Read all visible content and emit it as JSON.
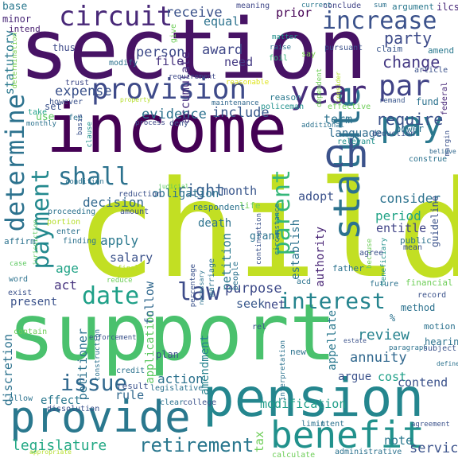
{
  "palette": {
    "deep_purple": "#440154",
    "purple": "#472d7b",
    "indigo": "#3b528b",
    "blue": "#2c728e",
    "teal": "#21918c",
    "green_teal": "#28ae80",
    "green": "#5ec962",
    "lime": "#addc30",
    "yellow": "#fde725"
  },
  "words": [
    {
      "id": "child",
      "text": "child",
      "color": "#c2df23"
    },
    {
      "id": "support",
      "text": "support",
      "color": "#4ac16d"
    },
    {
      "id": "section",
      "text": "section",
      "color": "#471365"
    },
    {
      "id": "income",
      "text": "income",
      "color": "#440154"
    },
    {
      "id": "pension",
      "text": "pension",
      "color": "#24868e"
    },
    {
      "id": "provide",
      "text": "provide",
      "color": "#2a788e"
    },
    {
      "id": "statute",
      "text": "statute",
      "color": "#2c728e"
    },
    {
      "id": "benefit",
      "text": "benefit",
      "color": "#21918c"
    },
    {
      "id": "pay",
      "text": "pay",
      "color": "#2a788e"
    },
    {
      "id": "year",
      "text": "year",
      "color": "#472d7b"
    },
    {
      "id": "par",
      "text": "par",
      "color": "#414487"
    },
    {
      "id": "ch",
      "text": "ch",
      "color": "#3b528b"
    },
    {
      "id": "provision",
      "text": "provision",
      "color": "#3e4a89"
    },
    {
      "id": "circuit",
      "text": "circuit",
      "color": "#482878"
    },
    {
      "id": "increase",
      "text": "increase",
      "color": "#3b528b"
    },
    {
      "id": "determine",
      "text": "determine",
      "color": "#2c728e"
    },
    {
      "id": "payment",
      "text": "payment",
      "color": "#23898e"
    },
    {
      "id": "shall",
      "text": "shall",
      "color": "#2c728e"
    },
    {
      "id": "parent",
      "text": "parent",
      "color": "#35b779"
    },
    {
      "id": "law",
      "text": "law",
      "color": "#3e4c8a"
    },
    {
      "id": "date",
      "text": "date",
      "color": "#1fa088"
    },
    {
      "id": "interest",
      "text": "interest",
      "color": "#25848e"
    },
    {
      "id": "issue",
      "text": "issue",
      "color": "#31688e"
    },
    {
      "id": "retirement",
      "text": "retirement",
      "color": "#2a778e"
    },
    {
      "id": "legislature",
      "text": "legislature",
      "color": "#22a884"
    },
    {
      "id": "right",
      "text": "right",
      "color": "#355f8d"
    },
    {
      "id": "require",
      "text": "require",
      "color": "#3b528b"
    },
    {
      "id": "party",
      "text": "party",
      "color": "#3e4c8a"
    },
    {
      "id": "change",
      "text": "change",
      "color": "#443983"
    },
    {
      "id": "evidence",
      "text": "evidence",
      "color": "#2c728e"
    },
    {
      "id": "include",
      "text": "include",
      "color": "#38588c"
    },
    {
      "id": "expense",
      "text": "expense",
      "color": "#3b528b"
    },
    {
      "id": "statutory",
      "text": "statutory",
      "color": "#2a788e"
    },
    {
      "id": "person",
      "text": "person",
      "color": "#3e4a89"
    },
    {
      "id": "award",
      "text": "award",
      "color": "#3f4788"
    },
    {
      "id": "need",
      "text": "need",
      "color": "#443a83"
    },
    {
      "id": "file",
      "text": "file",
      "color": "#46337e"
    },
    {
      "id": "receive",
      "text": "receive",
      "color": "#3b528b"
    },
    {
      "id": "equal",
      "text": "equal",
      "color": "#2c728e"
    },
    {
      "id": "prior",
      "text": "prior",
      "color": "#440154"
    },
    {
      "id": "accumulate",
      "text": "accumulate",
      "color": "#472f7d"
    },
    {
      "id": "term",
      "text": "term",
      "color": "#2c728e"
    },
    {
      "id": "language",
      "text": "language",
      "color": "#2f6c8e"
    },
    {
      "id": "consider",
      "text": "consider",
      "color": "#2c728e"
    },
    {
      "id": "adopt",
      "text": "adopt",
      "color": "#3b528b"
    },
    {
      "id": "month",
      "text": "month",
      "color": "#39568c"
    },
    {
      "id": "obligation",
      "text": "obligation",
      "color": "#2c728e"
    },
    {
      "id": "decision",
      "text": "decision",
      "color": "#31688e"
    },
    {
      "id": "period",
      "text": "period",
      "color": "#20a386"
    },
    {
      "id": "entitle",
      "text": "entitle",
      "color": "#414487"
    },
    {
      "id": "establish",
      "text": "establish",
      "color": "#2c728e"
    },
    {
      "id": "authority",
      "text": "authority",
      "color": "#482475"
    },
    {
      "id": "apply",
      "text": "apply",
      "color": "#2a788e"
    },
    {
      "id": "salary",
      "text": "salary",
      "color": "#3b528b"
    },
    {
      "id": "petition",
      "text": "petition",
      "color": "#2a788e"
    },
    {
      "id": "purpose",
      "text": "purpose",
      "color": "#3e4a89"
    },
    {
      "id": "seek",
      "text": "seek",
      "color": "#38588c"
    },
    {
      "id": "net",
      "text": "net",
      "color": "#3e4a89"
    },
    {
      "id": "review",
      "text": "review",
      "color": "#26828e"
    },
    {
      "id": "annuity",
      "text": "annuity",
      "color": "#31688e"
    },
    {
      "id": "appellate",
      "text": "appellate",
      "color": "#2a788e"
    },
    {
      "id": "argue",
      "text": "argue",
      "color": "#3b528b"
    },
    {
      "id": "cost",
      "text": "cost",
      "color": "#1fa088"
    },
    {
      "id": "contend",
      "text": "contend",
      "color": "#3b528b"
    },
    {
      "id": "modification",
      "text": "modification",
      "color": "#1f9e89"
    },
    {
      "id": "action",
      "text": "action",
      "color": "#2c728e"
    },
    {
      "id": "amendment",
      "text": "amendment",
      "color": "#26828e"
    },
    {
      "id": "application",
      "text": "application",
      "color": "#5ec962"
    },
    {
      "id": "follow",
      "text": "follow",
      "color": "#31688e"
    },
    {
      "id": "petitioner",
      "text": "petitioner",
      "color": "#2c728e"
    },
    {
      "id": "act",
      "text": "act",
      "color": "#46337e"
    },
    {
      "id": "age",
      "text": "age",
      "color": "#20a386"
    },
    {
      "id": "present",
      "text": "present",
      "color": "#3b528b"
    },
    {
      "id": "effect",
      "text": "effect",
      "color": "#2a788e"
    },
    {
      "id": "rule",
      "text": "rule",
      "color": "#31688e"
    },
    {
      "id": "tax",
      "text": "tax",
      "color": "#6ece58"
    },
    {
      "id": "note",
      "text": "note",
      "color": "#2a788e"
    },
    {
      "id": "service",
      "text": "service",
      "color": "#3b528b"
    },
    {
      "id": "discretion",
      "text": "discretion",
      "color": "#2c728e"
    },
    {
      "id": "base",
      "text": "base",
      "color": "#2a788e"
    },
    {
      "id": "minor",
      "text": "minor",
      "color": "#482677"
    },
    {
      "id": "intend",
      "text": "intend",
      "color": "#481f70"
    },
    {
      "id": "determination",
      "text": "determination",
      "color": "#7ad151"
    },
    {
      "id": "thus",
      "text": "thus",
      "color": "#3e4a89"
    },
    {
      "id": "give",
      "text": "give",
      "color": "#6ece58"
    },
    {
      "id": "meaning",
      "text": "meaning",
      "color": "#3f4788"
    },
    {
      "id": "current",
      "text": "current",
      "color": "#2a788e"
    },
    {
      "id": "conclude",
      "text": "conclude",
      "color": "#414487"
    },
    {
      "id": "sum",
      "text": "sum",
      "color": "#2c728e"
    },
    {
      "id": "argument",
      "text": "argument",
      "color": "#2a788e"
    },
    {
      "id": "ilcs",
      "text": "ilcs",
      "color": "#482878"
    },
    {
      "id": "matter",
      "text": "matter",
      "color": "#21918c"
    },
    {
      "id": "raise",
      "text": "raise",
      "color": "#2c728e"
    },
    {
      "id": "foil",
      "text": "foil",
      "color": "#35b779"
    },
    {
      "id": "say",
      "text": "say",
      "color": "#7ad151"
    },
    {
      "id": "pursuant",
      "text": "pursuant",
      "color": "#3b528b"
    },
    {
      "id": "claim",
      "text": "claim",
      "color": "#39568c"
    },
    {
      "id": "amend",
      "text": "amend",
      "color": "#2a788e"
    },
    {
      "id": "article",
      "text": "article",
      "color": "#3b528b"
    },
    {
      "id": "dependent",
      "text": "dependent",
      "color": "#6ece58"
    },
    {
      "id": "consider_small",
      "text": "consider",
      "color": "#b5de2b"
    },
    {
      "id": "federal",
      "text": "federal",
      "color": "#482878"
    },
    {
      "id": "modify",
      "text": "modify",
      "color": "#2c728e"
    },
    {
      "id": "requirement",
      "text": "requirement",
      "color": "#3e4a89"
    },
    {
      "id": "reasonable",
      "text": "reasonable",
      "color": "#dde318"
    },
    {
      "id": "trust",
      "text": "trust",
      "color": "#3e4a89"
    },
    {
      "id": "maintenance",
      "text": "maintenance",
      "color": "#31688e"
    },
    {
      "id": "reason",
      "text": "reason",
      "color": "#2a788e"
    },
    {
      "id": "policeman",
      "text": "policeman",
      "color": "#21918c"
    },
    {
      "id": "effective",
      "text": "effective",
      "color": "#6ece58"
    },
    {
      "id": "remand",
      "text": "remand",
      "color": "#39568c"
    },
    {
      "id": "fund",
      "text": "fund",
      "color": "#2c728e"
    },
    {
      "id": "however",
      "text": "however",
      "color": "#3b528b"
    },
    {
      "id": "property",
      "text": "property",
      "color": "#b5de2b"
    },
    {
      "id": "set",
      "text": "set",
      "color": "#3b528b"
    },
    {
      "id": "take",
      "text": "take",
      "color": "#1fa088"
    },
    {
      "id": "use",
      "text": "use",
      "color": "#5ec962"
    },
    {
      "id": "fee",
      "text": "fee",
      "color": "#2c728e"
    },
    {
      "id": "basis",
      "text": "basis",
      "color": "#3b528b"
    },
    {
      "id": "clause",
      "text": "clause",
      "color": "#21918c"
    },
    {
      "id": "monthly",
      "text": "monthly",
      "color": "#2c728e"
    },
    {
      "id": "deny",
      "text": "deny",
      "color": "#3b528b"
    },
    {
      "id": "process",
      "text": "process",
      "color": "#3e4a89"
    },
    {
      "id": "additional",
      "text": "additional",
      "color": "#2c728e"
    },
    {
      "id": "deduction",
      "text": "deduction",
      "color": "#3b528b"
    },
    {
      "id": "power",
      "text": "power",
      "color": "#2c728e"
    },
    {
      "id": "relevant",
      "text": "relevant",
      "color": "#21918c"
    },
    {
      "id": "margin",
      "text": "margin",
      "color": "#3b528b"
    },
    {
      "id": "believe",
      "text": "believe",
      "color": "#31688e"
    },
    {
      "id": "construe",
      "text": "construe",
      "color": "#2c728e"
    },
    {
      "id": "judicial",
      "text": "judicial",
      "color": "#5ec962"
    },
    {
      "id": "reduction",
      "text": "reduction",
      "color": "#3b528b"
    },
    {
      "id": "condition",
      "text": "condition",
      "color": "#2c728e"
    },
    {
      "id": "respondent",
      "text": "respondent",
      "color": "#2c728e"
    },
    {
      "id": "life",
      "text": "life",
      "color": "#6ece58"
    },
    {
      "id": "continuation",
      "text": "continuation",
      "color": "#3b528b"
    },
    {
      "id": "circumstance",
      "text": "circumstance",
      "color": "#2c728e"
    },
    {
      "id": "beneficiary",
      "text": "beneficiary",
      "color": "#21918c"
    },
    {
      "id": "because",
      "text": "because",
      "color": "#6ece58"
    },
    {
      "id": "proceeding",
      "text": "proceeding",
      "color": "#2c728e"
    },
    {
      "id": "amount",
      "text": "amount",
      "color": "#3b528b"
    },
    {
      "id": "death",
      "text": "death",
      "color": "#2c728e"
    },
    {
      "id": "portion",
      "text": "portion",
      "color": "#b5de2b"
    },
    {
      "id": "jurisdiction",
      "text": "jurisdiction",
      "color": "#5ec962"
    },
    {
      "id": "grant",
      "text": "grant",
      "color": "#2c728e"
    },
    {
      "id": "guideline",
      "text": "guideline",
      "color": "#3b528b"
    },
    {
      "id": "enter",
      "text": "enter",
      "color": "#2c728e"
    },
    {
      "id": "finding",
      "text": "finding",
      "color": "#2c728e"
    },
    {
      "id": "public",
      "text": "public",
      "color": "#2c728e"
    },
    {
      "id": "mean",
      "text": "mean",
      "color": "#3b528b"
    },
    {
      "id": "agree",
      "text": "agree",
      "color": "#3b528b"
    },
    {
      "id": "affirm",
      "text": "affirm",
      "color": "#2c728e"
    },
    {
      "id": "case",
      "text": "case",
      "color": "#5ec962"
    },
    {
      "id": "final",
      "text": "final",
      "color": "#b5de2b"
    },
    {
      "id": "marriage",
      "text": "marriage",
      "color": "#2c728e"
    },
    {
      "id": "people",
      "text": "people",
      "color": "#2c728e"
    },
    {
      "id": "word",
      "text": "word",
      "color": "#2c728e"
    },
    {
      "id": "reduce",
      "text": "reduce",
      "color": "#6ece58"
    },
    {
      "id": "percentage",
      "text": "percentage",
      "color": "#3b528b"
    },
    {
      "id": "necessary",
      "text": "necessary",
      "color": "#2c728e"
    },
    {
      "id": "father",
      "text": "father",
      "color": "#2c728e"
    },
    {
      "id": "exist",
      "text": "exist",
      "color": "#3b528b"
    },
    {
      "id": "acd",
      "text": "acd",
      "color": "#2c728e"
    },
    {
      "id": "future",
      "text": "future",
      "color": "#2c728e"
    },
    {
      "id": "financial",
      "text": "financial",
      "color": "#6ece58"
    },
    {
      "id": "record",
      "text": "record",
      "color": "#3b528b"
    },
    {
      "id": "method",
      "text": "method",
      "color": "#2c728e"
    },
    {
      "id": "percent",
      "text": "%",
      "color": "#2c728e"
    },
    {
      "id": "motion",
      "text": "motion",
      "color": "#2c728e"
    },
    {
      "id": "rel",
      "text": "rel",
      "color": "#3b528b"
    },
    {
      "id": "hearing",
      "text": "hearing",
      "color": "#2c728e"
    },
    {
      "id": "enforcement",
      "text": "enforcement",
      "color": "#3b528b"
    },
    {
      "id": "construction",
      "text": "construction",
      "color": "#2c728e"
    },
    {
      "id": "contain",
      "text": "contain",
      "color": "#6ece58"
    },
    {
      "id": "plan",
      "text": "plan",
      "color": "#3b528b"
    },
    {
      "id": "new",
      "text": "new",
      "color": "#2c728e"
    },
    {
      "id": "estate",
      "text": "estate",
      "color": "#3b528b"
    },
    {
      "id": "paragraph",
      "text": "paragraph",
      "color": "#2c728e"
    },
    {
      "id": "subject",
      "text": "subject",
      "color": "#3b528b"
    },
    {
      "id": "define",
      "text": "define",
      "color": "#2c728e"
    },
    {
      "id": "credit",
      "text": "credit",
      "color": "#2c728e"
    },
    {
      "id": "interpretation",
      "text": "interpretation",
      "color": "#2c728e"
    },
    {
      "id": "result",
      "text": "result",
      "color": "#3b528b"
    },
    {
      "id": "legislative",
      "text": "legislative",
      "color": "#2c728e"
    },
    {
      "id": "allow",
      "text": "allow",
      "color": "#2c728e"
    },
    {
      "id": "dissolution",
      "text": "dissolution",
      "color": "#3b528b"
    },
    {
      "id": "clear",
      "text": "clear",
      "color": "#2c728e"
    },
    {
      "id": "college",
      "text": "college",
      "color": "#3b528b"
    },
    {
      "id": "limit",
      "text": "limit",
      "color": "#2c728e"
    },
    {
      "id": "intent",
      "text": "intent",
      "color": "#2c728e"
    },
    {
      "id": "agreement",
      "text": "agreement",
      "color": "#3b528b"
    },
    {
      "id": "calculate",
      "text": "calculate",
      "color": "#6ece58"
    },
    {
      "id": "administrative",
      "text": "administrative",
      "color": "#2c728e"
    },
    {
      "id": "appropriate",
      "text": "appropriate",
      "color": "#b5de2b"
    }
  ]
}
